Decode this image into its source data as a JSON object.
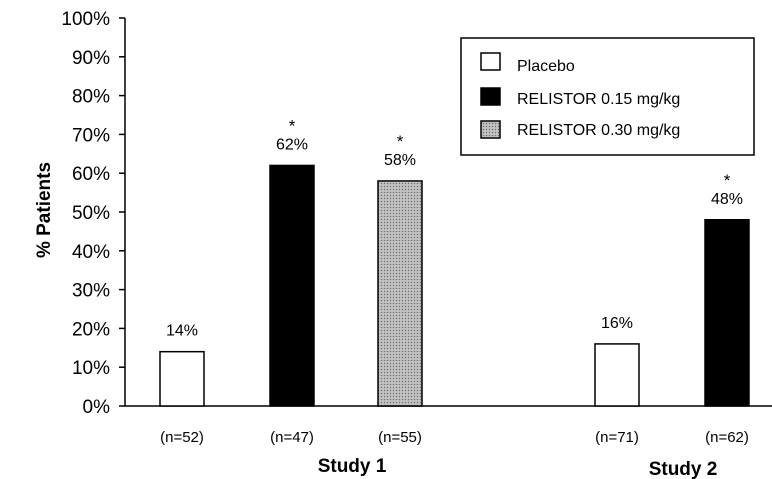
{
  "chart_data": {
    "type": "bar",
    "ylabel": "% Patients",
    "ylim": [
      0,
      100
    ],
    "yticks": [
      "0%",
      "10%",
      "20%",
      "30%",
      "40%",
      "50%",
      "60%",
      "70%",
      "80%",
      "90%",
      "100%"
    ],
    "legend_position": "top-right",
    "series": [
      {
        "name": "Placebo",
        "color": "#ffffff"
      },
      {
        "name": "RELISTOR 0.15 mg/kg",
        "color": "#000000"
      },
      {
        "name": "RELISTOR 0.30 mg/kg",
        "color": "#a9a9a9"
      }
    ],
    "groups": [
      {
        "label": "Study 1",
        "bars": [
          {
            "series": "Placebo",
            "value": 14,
            "label": "14%",
            "n": "(n=52)",
            "significant": false
          },
          {
            "series": "RELISTOR 0.15 mg/kg",
            "value": 62,
            "label": "62%",
            "n": "(n=47)",
            "significant": true
          },
          {
            "series": "RELISTOR 0.30 mg/kg",
            "value": 58,
            "label": "58%",
            "n": "(n=55)",
            "significant": true
          }
        ]
      },
      {
        "label": "Study 2",
        "bars": [
          {
            "series": "Placebo",
            "value": 16,
            "label": "16%",
            "n": "(n=71)",
            "significant": false
          },
          {
            "series": "RELISTOR 0.15 mg/kg",
            "value": 48,
            "label": "48%",
            "n": "(n=62)",
            "significant": true
          }
        ]
      }
    ],
    "significance_marker": "*"
  }
}
